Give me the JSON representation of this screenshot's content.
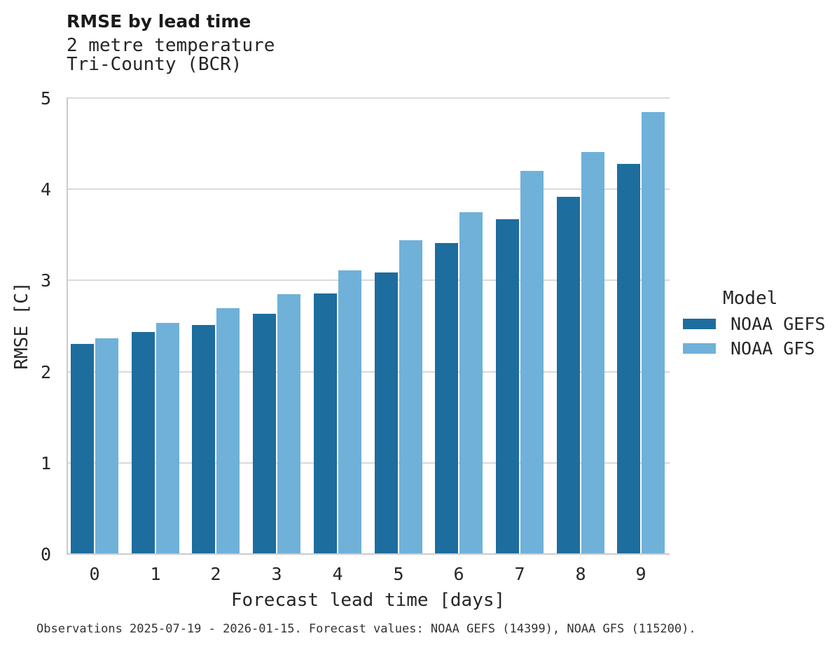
{
  "chart_data": {
    "type": "bar",
    "title": "RMSE by lead time",
    "subtitle_lines": [
      "2 metre temperature",
      "Tri-County (BCR)"
    ],
    "categories": [
      "0",
      "1",
      "2",
      "3",
      "4",
      "5",
      "6",
      "7",
      "8",
      "9"
    ],
    "series": [
      {
        "name": "NOAA GEFS",
        "color": "#1d6d9e",
        "values": [
          2.3,
          2.43,
          2.5,
          2.63,
          2.85,
          3.08,
          3.4,
          3.66,
          3.91,
          4.27
        ]
      },
      {
        "name": "NOAA GFS",
        "color": "#6fb1d9",
        "values": [
          2.36,
          2.53,
          2.69,
          2.84,
          3.1,
          3.43,
          3.74,
          4.19,
          4.4,
          4.84
        ]
      }
    ],
    "xlabel": "Forecast lead time [days]",
    "ylabel": "RMSE [C]",
    "ylim": [
      0,
      5.02
    ],
    "yticks": [
      0,
      1,
      2,
      3,
      4,
      5
    ],
    "grid": "horizontal",
    "legend": {
      "title": "Model",
      "position": "right"
    },
    "caption": "Observations 2025-07-19 - 2026-01-15. Forecast values: NOAA GEFS (14399), NOAA GFS (115200)."
  },
  "colors": {
    "gridline": "#d9d9d9",
    "spine": "#cbcbcb",
    "text": "#262626"
  }
}
